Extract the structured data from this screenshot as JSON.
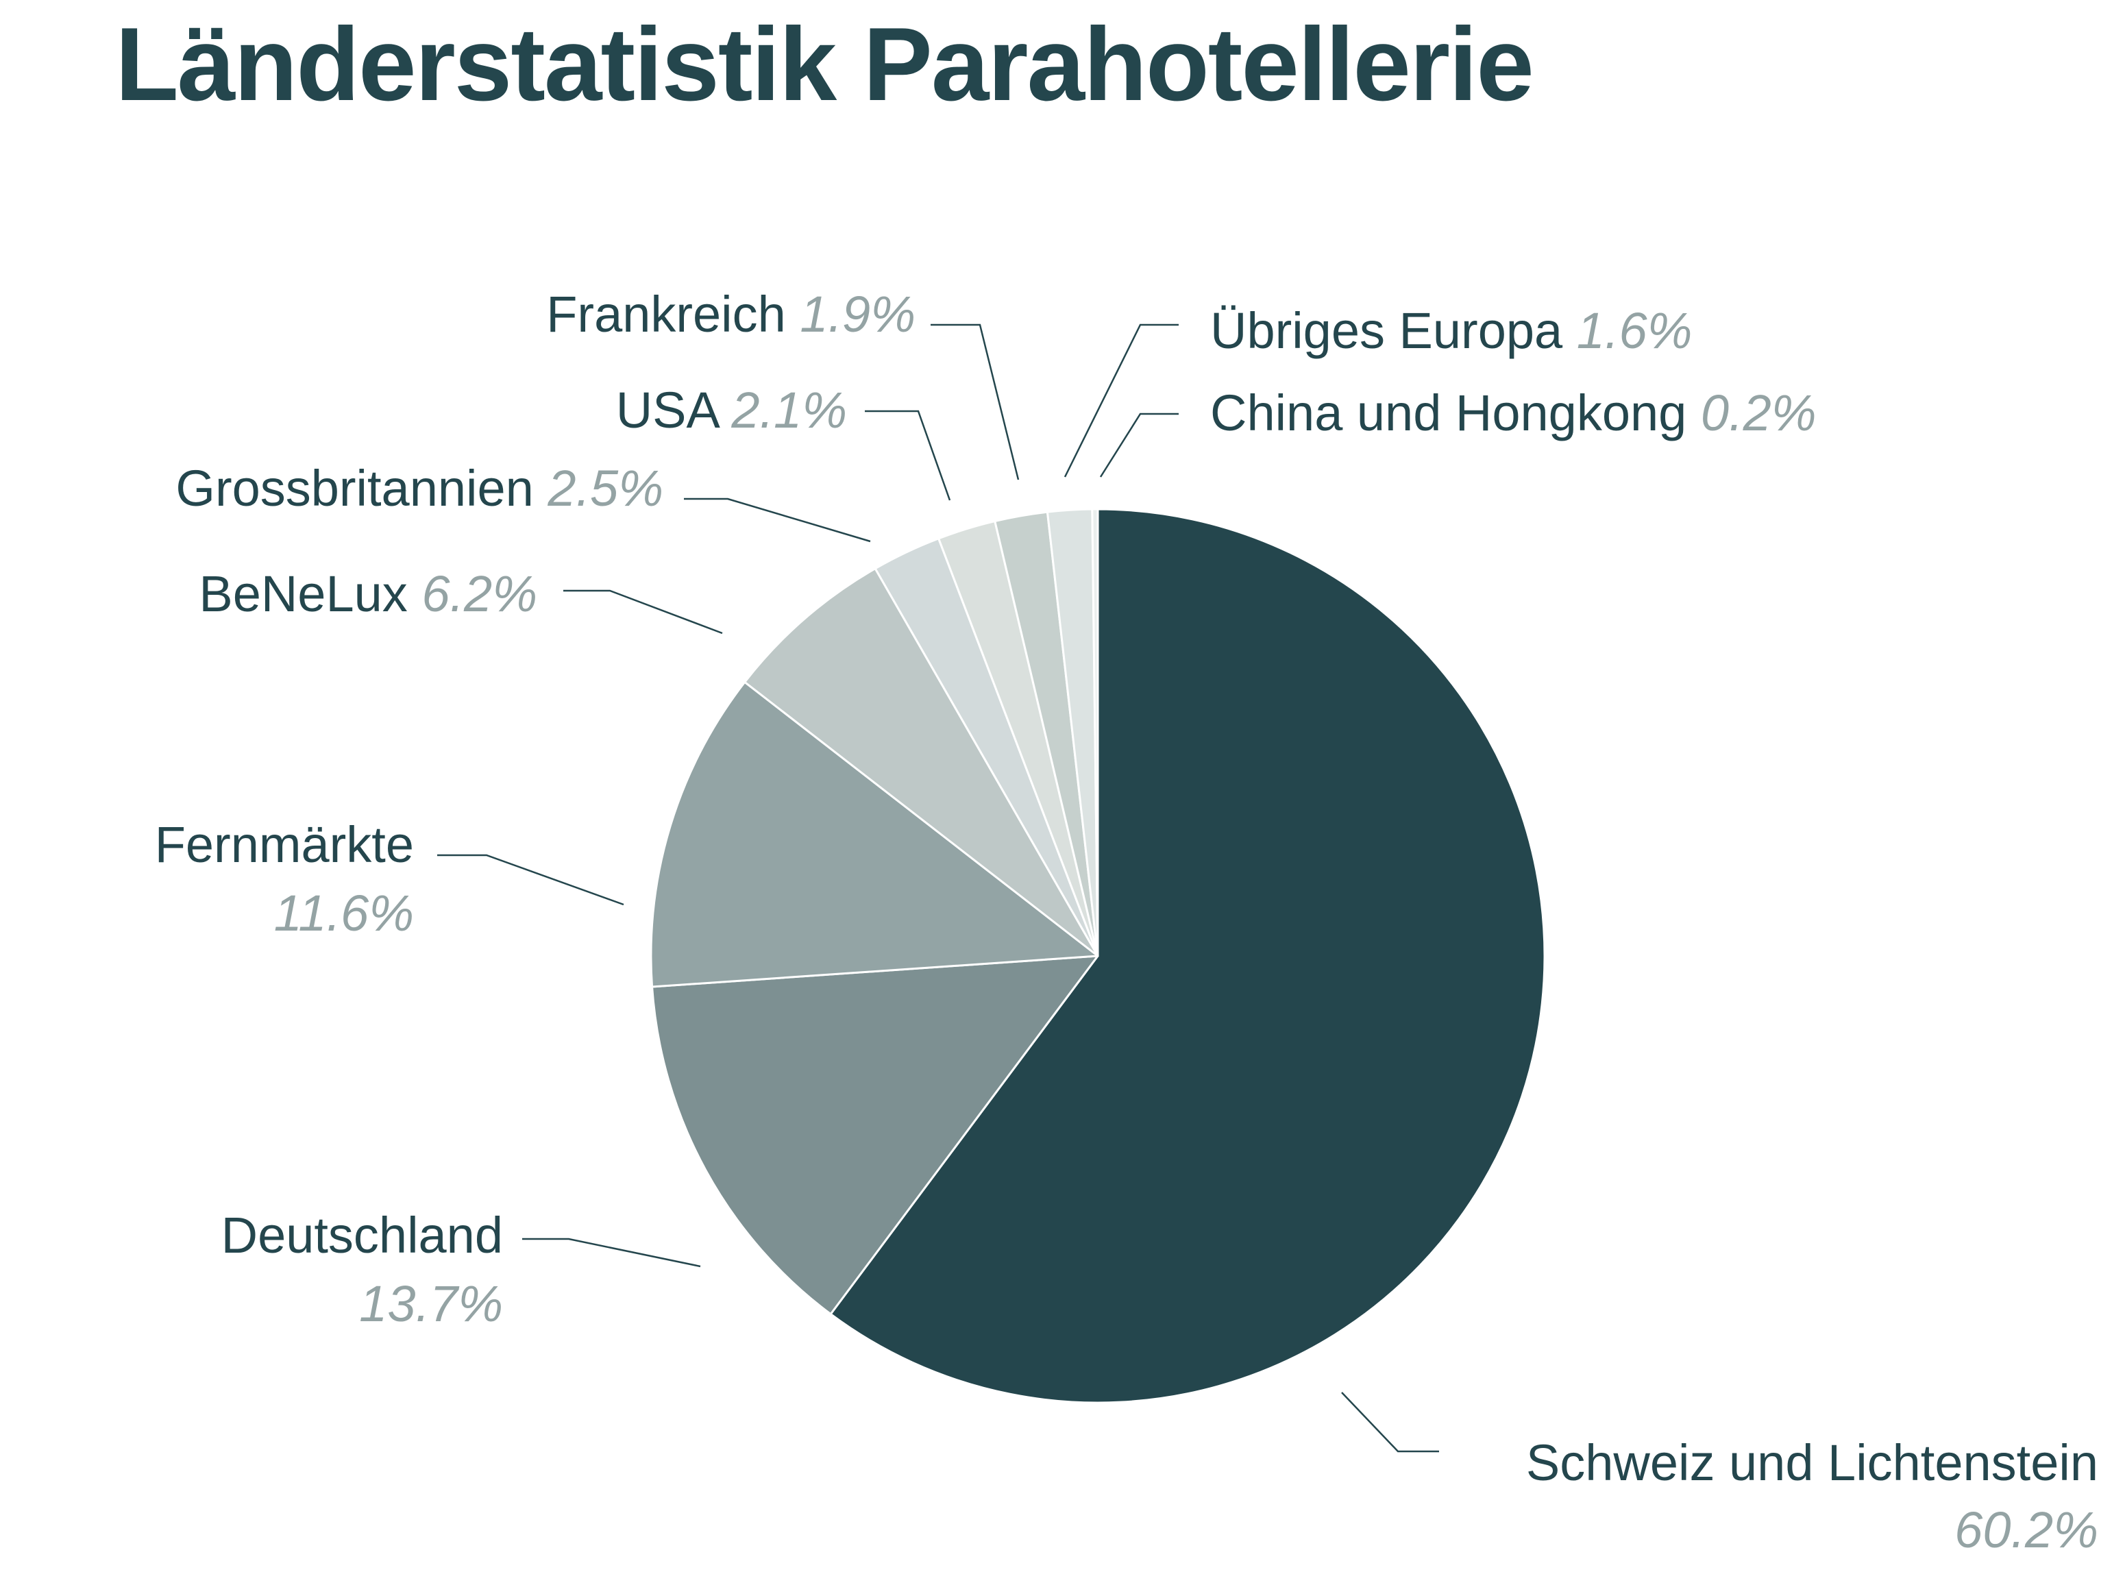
{
  "chart_data": {
    "type": "pie",
    "title": "Länderstatistik Parahotellerie",
    "start_angle_deg": 0,
    "direction": "clockwise",
    "slices": [
      {
        "label": "Schweiz und Lichtenstein",
        "value": 60.2,
        "value_label": "60.2%",
        "color": "#24464d"
      },
      {
        "label": "Deutschland",
        "value": 13.7,
        "value_label": "13.7%",
        "color": "#7d9092"
      },
      {
        "label": "Fernmärkte",
        "value": 11.6,
        "value_label": "11.6%",
        "color": "#93a4a5"
      },
      {
        "label": "BeNeLux",
        "value": 6.2,
        "value_label": "6.2%",
        "color": "#bec8c7"
      },
      {
        "label": "Grossbritannien",
        "value": 2.5,
        "value_label": "2.5%",
        "color": "#d2dadb"
      },
      {
        "label": "USA",
        "value": 2.1,
        "value_label": "2.1%",
        "color": "#dae0dd"
      },
      {
        "label": "Frankreich",
        "value": 1.9,
        "value_label": "1.9%",
        "color": "#c6d0cd"
      },
      {
        "label": "Übriges Europa",
        "value": 1.6,
        "value_label": "1.6%",
        "color": "#dce3e2"
      },
      {
        "label": "China und Hongkong",
        "value": 0.2,
        "value_label": "0.2%",
        "color": "#eaeeed"
      }
    ],
    "colors": {
      "text": "#24464d",
      "value_text": "#94a3a4",
      "leader": "#24464d",
      "separator": "#ffffff"
    }
  }
}
